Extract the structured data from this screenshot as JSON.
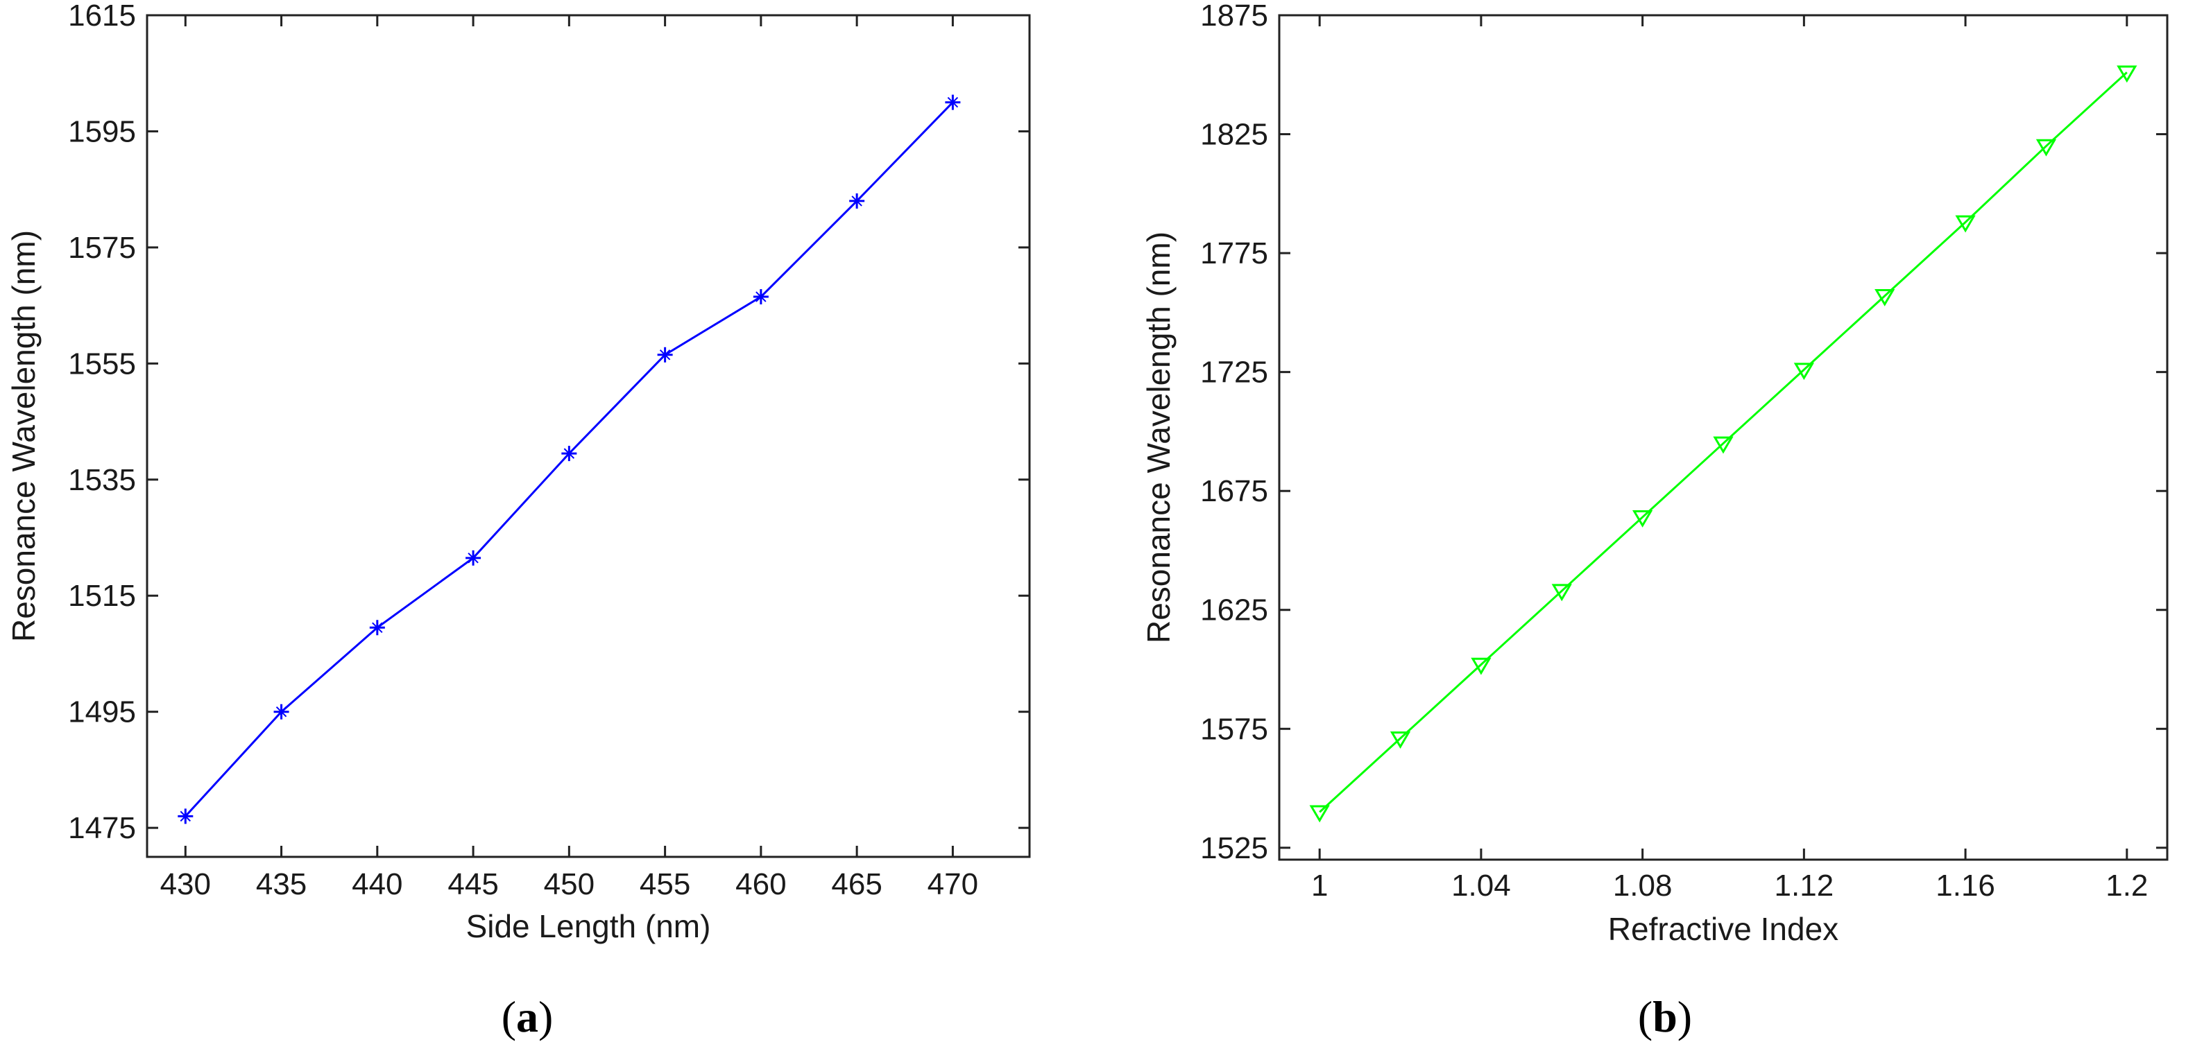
{
  "chart_data": [
    {
      "type": "line",
      "panel": "a",
      "panel_label_open": "(",
      "panel_label_letter": "a",
      "panel_label_close": ")",
      "xlabel": "Side Length (nm)",
      "ylabel": "Resonance Wavelength (nm)",
      "xlim": [
        428,
        474
      ],
      "ylim": [
        1470,
        1615
      ],
      "xticks": [
        430,
        435,
        440,
        445,
        450,
        455,
        460,
        465,
        470
      ],
      "yticks": [
        1475,
        1495,
        1515,
        1535,
        1555,
        1575,
        1595,
        1615
      ],
      "grid": false,
      "series": [
        {
          "marker": "plus-star",
          "color": "#0000ff",
          "x": [
            430,
            435,
            440,
            445,
            450,
            455,
            460,
            465,
            470
          ],
          "y": [
            1477,
            1495,
            1509.5,
            1521.5,
            1539.5,
            1556.5,
            1566.5,
            1583,
            1600
          ]
        }
      ]
    },
    {
      "type": "line",
      "panel": "b",
      "panel_label_open": "(",
      "panel_label_letter": "b",
      "panel_label_close": ")",
      "xlabel": "Refractive Index",
      "ylabel": "Resonance Wavelength (nm)",
      "xlim": [
        0.99,
        1.21
      ],
      "ylim": [
        1520,
        1875
      ],
      "xticks": [
        1,
        1.04,
        1.08,
        1.12,
        1.16,
        1.2
      ],
      "xtick_labels": [
        "1",
        "1.04",
        "1.08",
        "1.12",
        "1.16",
        "1.2"
      ],
      "yticks": [
        1525,
        1575,
        1625,
        1675,
        1725,
        1775,
        1825,
        1875
      ],
      "grid": false,
      "series": [
        {
          "marker": "triangle-down",
          "color": "#00ff00",
          "x": [
            1.0,
            1.02,
            1.04,
            1.06,
            1.08,
            1.1,
            1.12,
            1.14,
            1.16,
            1.18,
            1.2
          ],
          "y": [
            1540,
            1571,
            1602,
            1633,
            1664,
            1695,
            1726,
            1757,
            1788,
            1820,
            1851
          ]
        }
      ]
    }
  ]
}
